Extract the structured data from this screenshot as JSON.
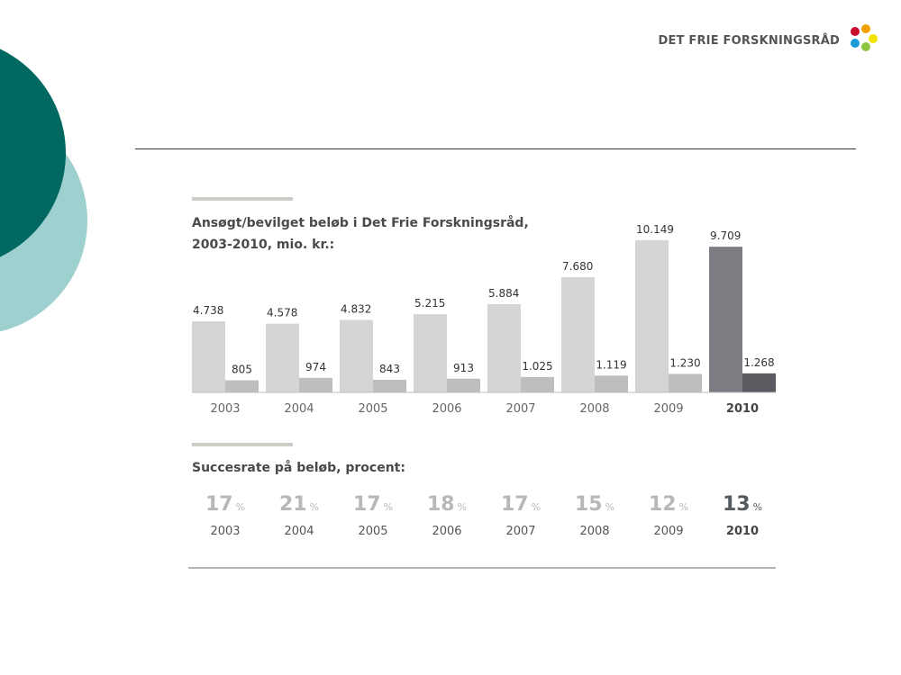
{
  "brand": {
    "logo_text": "DET FRIE FORSKNINGSRÅD",
    "dot_colors": [
      "#c8102e",
      "#f4a100",
      "#1a9ad6",
      "#8cc63f",
      "#f2e500"
    ]
  },
  "colors": {
    "deco_dark": "#006860",
    "deco_light": "#9fd0d0",
    "bar_applied": "#d6d4d6",
    "bar_granted": "#bebdbf",
    "bar_applied_highlight": "#7d7c82",
    "bar_granted_highlight": "#5a5b60"
  },
  "chart_data": {
    "type": "bar",
    "title": "Ansøgt/bevilget beløb i Det Frie Forskningsråd,",
    "subtitle": "2003-2010, mio. kr.:",
    "categories": [
      "2003",
      "2004",
      "2005",
      "2006",
      "2007",
      "2008",
      "2009",
      "2010"
    ],
    "series": [
      {
        "values": [
          4738,
          4578,
          4832,
          5215,
          5884,
          7680,
          10149,
          9709
        ],
        "labels": [
          "4.738",
          "4.578",
          "4.832",
          "5.215",
          "5.884",
          "7.680",
          "10.149",
          "9.709"
        ]
      },
      {
        "values": [
          805,
          974,
          843,
          913,
          1025,
          1119,
          1230,
          1268
        ],
        "labels": [
          "805",
          "974",
          "843",
          "913",
          "1.025",
          "1.119",
          "1.230",
          "1.268"
        ]
      }
    ],
    "highlight_category": "2010",
    "ylim": [
      0,
      10500
    ],
    "grid": false,
    "legend": "none"
  },
  "success": {
    "title": "Succesrate på beløb, procent:",
    "unit": "%",
    "items": [
      {
        "year": "2003",
        "value": "17"
      },
      {
        "year": "2004",
        "value": "21"
      },
      {
        "year": "2005",
        "value": "17"
      },
      {
        "year": "2006",
        "value": "18"
      },
      {
        "year": "2007",
        "value": "17"
      },
      {
        "year": "2008",
        "value": "15"
      },
      {
        "year": "2009",
        "value": "12"
      },
      {
        "year": "2010",
        "value": "13"
      }
    ]
  }
}
